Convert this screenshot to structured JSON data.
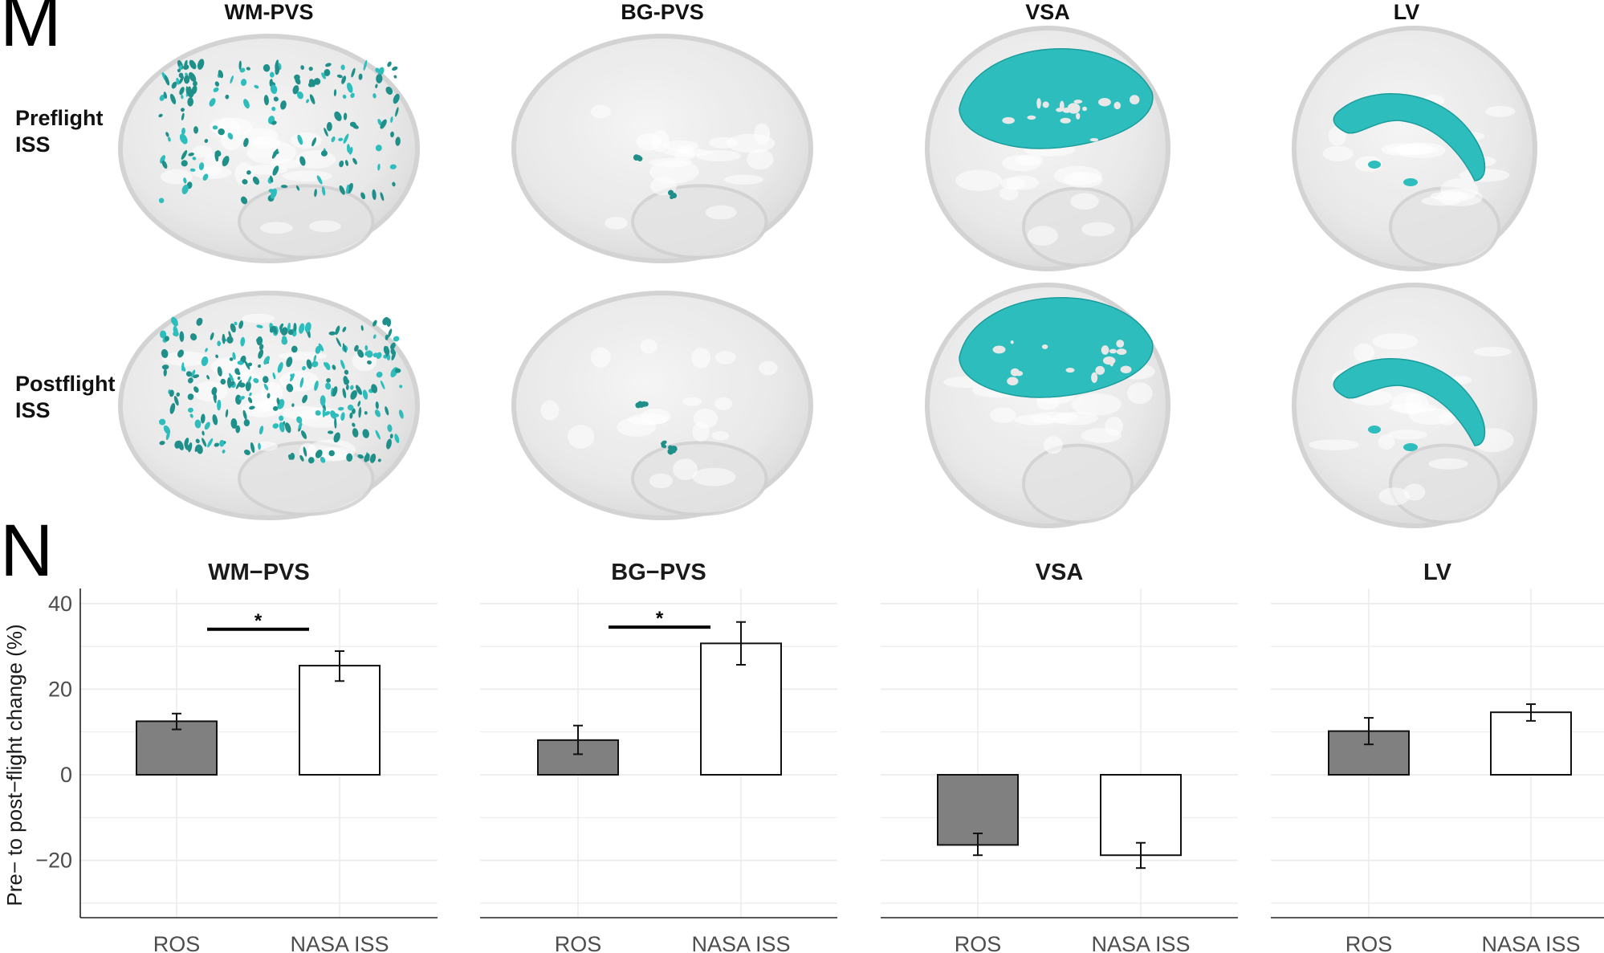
{
  "figure": {
    "panel_m_letter": "M",
    "panel_n_letter": "N",
    "brain_columns": [
      {
        "title": "WM-PVS",
        "structure": "white matter perivascular spaces (scattered small clusters)"
      },
      {
        "title": "BG-PVS",
        "structure": "basal ganglia perivascular spaces (few small clusters)"
      },
      {
        "title": "VSA",
        "structure": "vertex subarachnoid space (cap-like surface)"
      },
      {
        "title": "LV",
        "structure": "lateral ventricle (arched volume)"
      }
    ],
    "brain_rows": [
      {
        "line1": "Preflight",
        "line2": "ISS"
      },
      {
        "line1": "Postflight",
        "line2": "ISS"
      }
    ],
    "colors": {
      "highlight_teal": "#2ebdbd",
      "highlight_dark_teal": "#1f8f8a",
      "brain_gray": "#d9d9d9",
      "ros_bar": "#808080",
      "nasa_bar": "#ffffff",
      "grid": "#ebebeb"
    }
  },
  "chart_data": [
    {
      "type": "bar",
      "title": "WM−PVS",
      "categories": [
        "ROS",
        "NASA ISS"
      ],
      "values": [
        12.5,
        25.5
      ],
      "error_low": [
        10.6,
        21.9
      ],
      "error_high": [
        14.3,
        28.9
      ],
      "significance": {
        "label": "*",
        "between": [
          "ROS",
          "NASA ISS"
        ],
        "y": 34
      },
      "ylabel": "Pre− to post−flight change (%)",
      "yticks": [
        40,
        20,
        0,
        -20
      ],
      "ytick_labels": [
        "40",
        "20",
        "0",
        "−20"
      ],
      "ylim": [
        -33.4,
        44
      ],
      "grid": true
    },
    {
      "type": "bar",
      "title": "BG−PVS",
      "categories": [
        "ROS",
        "NASA ISS"
      ],
      "values": [
        8.1,
        30.7
      ],
      "error_low": [
        4.8,
        25.7
      ],
      "error_high": [
        11.5,
        35.7
      ],
      "significance": {
        "label": "*",
        "between": [
          "ROS",
          "NASA ISS"
        ],
        "y": 34.5
      },
      "ylim": [
        -33.4,
        44
      ],
      "grid": true
    },
    {
      "type": "bar",
      "title": "VSA",
      "categories": [
        "ROS",
        "NASA ISS"
      ],
      "values": [
        -16.4,
        -18.8
      ],
      "error_low": [
        -18.8,
        -21.8
      ],
      "error_high": [
        -13.7,
        -15.9
      ],
      "ylim": [
        -33.4,
        44
      ],
      "grid": true
    },
    {
      "type": "bar",
      "title": "LV",
      "categories": [
        "ROS",
        "NASA ISS"
      ],
      "values": [
        10.2,
        14.6
      ],
      "error_low": [
        7.1,
        12.6
      ],
      "error_high": [
        13.3,
        16.5
      ],
      "ylim": [
        -33.4,
        44
      ],
      "grid": true
    }
  ]
}
